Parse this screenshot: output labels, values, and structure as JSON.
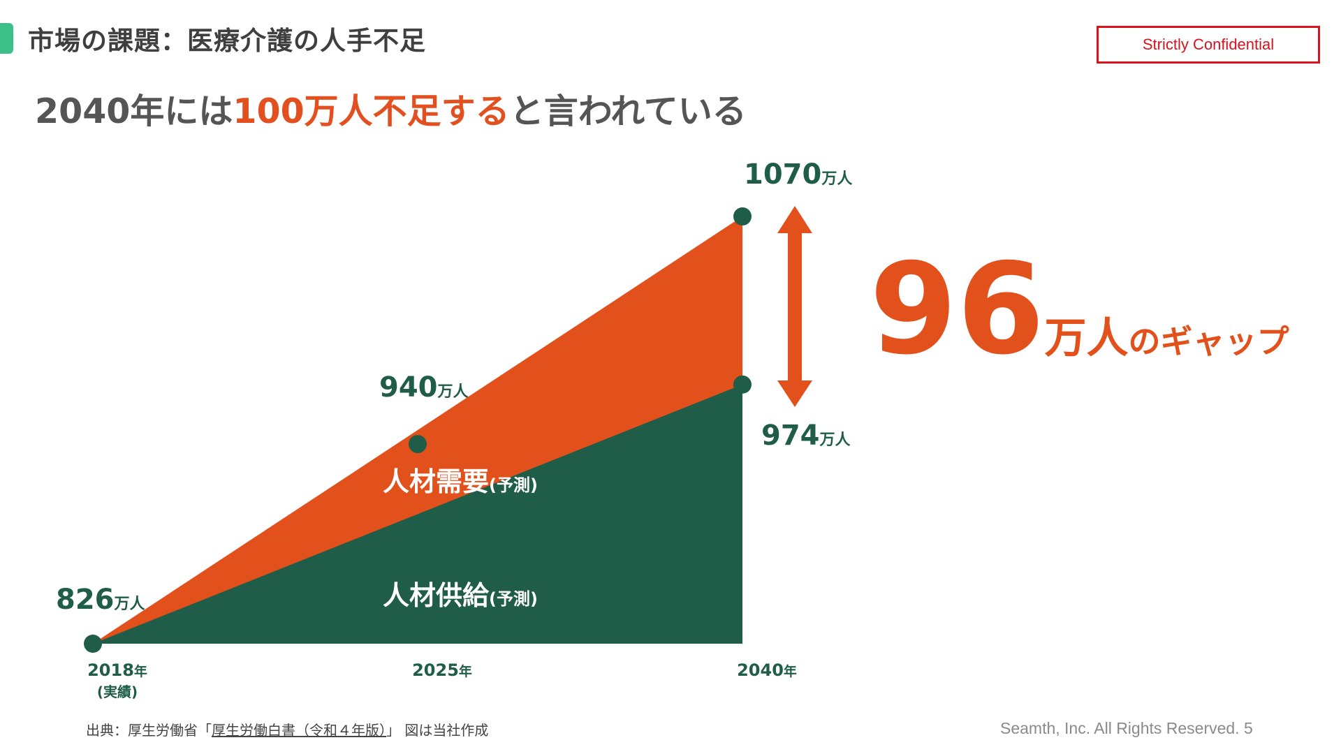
{
  "header": {
    "section_title": "市場の課題：医療介護の人手不足",
    "confidential_label": "Strictly Confidential"
  },
  "headline": {
    "prefix": "2040年には",
    "highlight": "100万人不足する",
    "suffix": "と言われている"
  },
  "colors": {
    "demand": "#e2501c",
    "supply": "#1f5d48",
    "accent": "#3cc08a",
    "label_green": "#1f5d48",
    "confidential_red": "#d9121c"
  },
  "chart_data": {
    "type": "area",
    "x": [
      "2018年",
      "2025年",
      "2040年"
    ],
    "x_sublabels": [
      "(実績)",
      "",
      ""
    ],
    "unit": "万人",
    "ylim": [
      826,
      1070
    ],
    "series": [
      {
        "name": "人材需要",
        "note": "(予測)",
        "points": [
          {
            "x": 0,
            "value": 826
          },
          {
            "x": 1,
            "value": 940
          },
          {
            "x": 2,
            "value": 1070
          }
        ]
      },
      {
        "name": "人材供給",
        "note": "(予測)",
        "points": [
          {
            "x": 0,
            "value": 826
          },
          {
            "x": 2,
            "value": 974
          }
        ]
      }
    ],
    "point_labels": [
      {
        "value": "826",
        "unit": "万人"
      },
      {
        "value": "940",
        "unit": "万人"
      },
      {
        "value": "1070",
        "unit": "万人"
      },
      {
        "value": "974",
        "unit": "万人"
      }
    ],
    "gap": {
      "value": "96",
      "unit": "万人",
      "suffix": "のギャップ"
    }
  },
  "footer": {
    "source_prefix": "出典：厚生労働省「",
    "source_link": "厚生労働白書（令和４年版）",
    "source_suffix": "」 図は当社作成",
    "copyright": "Seamth, Inc. All Rights Reserved. 5"
  }
}
